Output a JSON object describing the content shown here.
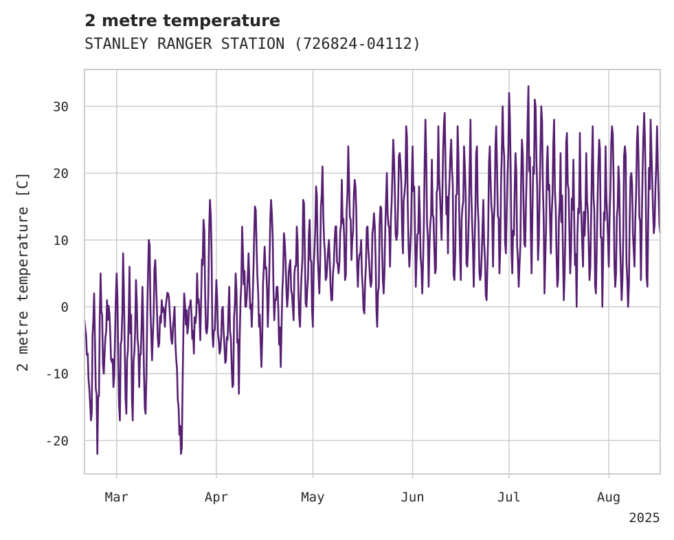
{
  "chart_data": {
    "type": "line",
    "title": "2 metre temperature",
    "subtitle": "STANLEY RANGER STATION (726824-04112)",
    "ylabel": "2 metre temperature [C]",
    "xlabel": "",
    "x_range": [
      "2025-02-19",
      "2025-08-17"
    ],
    "ylim": [
      -25,
      35.5
    ],
    "y_ticks": [
      -20,
      -10,
      0,
      10,
      20,
      30
    ],
    "x_ticks": [
      {
        "date": "2025-03-01",
        "label": "Mar"
      },
      {
        "date": "2025-04-01",
        "label": "Apr"
      },
      {
        "date": "2025-05-01",
        "label": "May"
      },
      {
        "date": "2025-06-01",
        "label": "Jun"
      },
      {
        "date": "2025-07-01",
        "label": "Jul"
      },
      {
        "date": "2025-08-01",
        "label": "Aug"
      }
    ],
    "x_offset_label": "2025",
    "grid": true,
    "colors": {
      "line": "#561f72",
      "grid": "#cccccc",
      "frame": "#cccccc",
      "text": "#262626"
    },
    "series": [
      {
        "points": [
          [
            "2025-02-19",
            -2
          ],
          [
            "2025-02-20",
            -7
          ],
          [
            "2025-02-21",
            -17
          ],
          [
            "2025-02-22",
            2
          ],
          [
            "2025-02-23",
            -22
          ],
          [
            "2025-02-24",
            5
          ],
          [
            "2025-02-25",
            -10
          ],
          [
            "2025-02-26",
            1
          ],
          [
            "2025-02-27",
            -4
          ],
          [
            "2025-02-28",
            -12
          ],
          [
            "2025-03-01",
            5
          ],
          [
            "2025-03-02",
            -17
          ],
          [
            "2025-03-03",
            8
          ],
          [
            "2025-03-04",
            -16
          ],
          [
            "2025-03-05",
            6
          ],
          [
            "2025-03-06",
            -17
          ],
          [
            "2025-03-07",
            4
          ],
          [
            "2025-03-08",
            -12
          ],
          [
            "2025-03-09",
            3
          ],
          [
            "2025-03-10",
            -16
          ],
          [
            "2025-03-11",
            10
          ],
          [
            "2025-03-12",
            -8
          ],
          [
            "2025-03-13",
            7
          ],
          [
            "2025-03-14",
            -6
          ],
          [
            "2025-03-15",
            1
          ],
          [
            "2025-03-16",
            -3
          ],
          [
            "2025-03-17",
            2
          ],
          [
            "2025-03-18",
            -5
          ],
          [
            "2025-03-19",
            0
          ],
          [
            "2025-03-20",
            -14
          ],
          [
            "2025-03-21",
            -22
          ],
          [
            "2025-03-22",
            2
          ],
          [
            "2025-03-23",
            -4
          ],
          [
            "2025-03-24",
            1
          ],
          [
            "2025-03-25",
            -7
          ],
          [
            "2025-03-26",
            5
          ],
          [
            "2025-03-27",
            -5
          ],
          [
            "2025-03-28",
            13
          ],
          [
            "2025-03-29",
            -4
          ],
          [
            "2025-03-30",
            16
          ],
          [
            "2025-03-31",
            -6
          ],
          [
            "2025-04-01",
            4
          ],
          [
            "2025-04-02",
            -7
          ],
          [
            "2025-04-03",
            0
          ],
          [
            "2025-04-04",
            -8
          ],
          [
            "2025-04-05",
            3
          ],
          [
            "2025-04-06",
            -12
          ],
          [
            "2025-04-07",
            5
          ],
          [
            "2025-04-08",
            -13
          ],
          [
            "2025-04-09",
            12
          ],
          [
            "2025-04-10",
            0
          ],
          [
            "2025-04-11",
            8
          ],
          [
            "2025-04-12",
            -3
          ],
          [
            "2025-04-13",
            15
          ],
          [
            "2025-04-14",
            2
          ],
          [
            "2025-04-15",
            -9
          ],
          [
            "2025-04-16",
            9
          ],
          [
            "2025-04-17",
            -3
          ],
          [
            "2025-04-18",
            16
          ],
          [
            "2025-04-19",
            -2
          ],
          [
            "2025-04-20",
            3
          ],
          [
            "2025-04-21",
            -9
          ],
          [
            "2025-04-22",
            11
          ],
          [
            "2025-04-23",
            0
          ],
          [
            "2025-04-24",
            7
          ],
          [
            "2025-04-25",
            -2
          ],
          [
            "2025-04-26",
            12
          ],
          [
            "2025-04-27",
            -3
          ],
          [
            "2025-04-28",
            16
          ],
          [
            "2025-04-29",
            0
          ],
          [
            "2025-04-30",
            13
          ],
          [
            "2025-05-01",
            -3
          ],
          [
            "2025-05-02",
            18
          ],
          [
            "2025-05-03",
            2
          ],
          [
            "2025-05-04",
            21
          ],
          [
            "2025-05-05",
            4
          ],
          [
            "2025-05-06",
            10
          ],
          [
            "2025-05-07",
            1
          ],
          [
            "2025-05-08",
            12
          ],
          [
            "2025-05-09",
            5
          ],
          [
            "2025-05-10",
            19
          ],
          [
            "2025-05-11",
            4
          ],
          [
            "2025-05-12",
            24
          ],
          [
            "2025-05-13",
            7
          ],
          [
            "2025-05-14",
            19
          ],
          [
            "2025-05-15",
            3
          ],
          [
            "2025-05-16",
            10
          ],
          [
            "2025-05-17",
            -1
          ],
          [
            "2025-05-18",
            12
          ],
          [
            "2025-05-19",
            3
          ],
          [
            "2025-05-20",
            14
          ],
          [
            "2025-05-21",
            -3
          ],
          [
            "2025-05-22",
            15
          ],
          [
            "2025-05-23",
            2
          ],
          [
            "2025-05-24",
            20
          ],
          [
            "2025-05-25",
            6
          ],
          [
            "2025-05-26",
            25
          ],
          [
            "2025-05-27",
            10
          ],
          [
            "2025-05-28",
            23
          ],
          [
            "2025-05-29",
            8
          ],
          [
            "2025-05-30",
            27
          ],
          [
            "2025-05-31",
            6
          ],
          [
            "2025-06-01",
            24
          ],
          [
            "2025-06-02",
            3
          ],
          [
            "2025-06-03",
            18
          ],
          [
            "2025-06-04",
            2
          ],
          [
            "2025-06-05",
            28
          ],
          [
            "2025-06-06",
            3
          ],
          [
            "2025-06-07",
            22
          ],
          [
            "2025-06-08",
            5
          ],
          [
            "2025-06-09",
            27
          ],
          [
            "2025-06-10",
            10
          ],
          [
            "2025-06-11",
            29
          ],
          [
            "2025-06-12",
            8
          ],
          [
            "2025-06-13",
            25
          ],
          [
            "2025-06-14",
            4
          ],
          [
            "2025-06-15",
            27
          ],
          [
            "2025-06-16",
            4
          ],
          [
            "2025-06-17",
            24
          ],
          [
            "2025-06-18",
            6
          ],
          [
            "2025-06-19",
            28
          ],
          [
            "2025-06-20",
            3
          ],
          [
            "2025-06-21",
            24
          ],
          [
            "2025-06-22",
            4
          ],
          [
            "2025-06-23",
            16
          ],
          [
            "2025-06-24",
            1
          ],
          [
            "2025-06-25",
            24
          ],
          [
            "2025-06-26",
            6
          ],
          [
            "2025-06-27",
            27
          ],
          [
            "2025-06-28",
            5
          ],
          [
            "2025-06-29",
            30
          ],
          [
            "2025-06-30",
            8
          ],
          [
            "2025-07-01",
            32
          ],
          [
            "2025-07-02",
            5
          ],
          [
            "2025-07-03",
            23
          ],
          [
            "2025-07-04",
            3
          ],
          [
            "2025-07-05",
            25
          ],
          [
            "2025-07-06",
            9
          ],
          [
            "2025-07-07",
            33
          ],
          [
            "2025-07-08",
            5
          ],
          [
            "2025-07-09",
            31
          ],
          [
            "2025-07-10",
            7
          ],
          [
            "2025-07-11",
            30
          ],
          [
            "2025-07-12",
            2
          ],
          [
            "2025-07-13",
            24
          ],
          [
            "2025-07-14",
            8
          ],
          [
            "2025-07-15",
            28
          ],
          [
            "2025-07-16",
            3
          ],
          [
            "2025-07-17",
            23
          ],
          [
            "2025-07-18",
            1
          ],
          [
            "2025-07-19",
            26
          ],
          [
            "2025-07-20",
            5
          ],
          [
            "2025-07-21",
            22
          ],
          [
            "2025-07-22",
            0
          ],
          [
            "2025-07-23",
            26
          ],
          [
            "2025-07-24",
            6
          ],
          [
            "2025-07-25",
            23
          ],
          [
            "2025-07-26",
            4
          ],
          [
            "2025-07-27",
            27
          ],
          [
            "2025-07-28",
            2
          ],
          [
            "2025-07-29",
            25
          ],
          [
            "2025-07-30",
            0
          ],
          [
            "2025-07-31",
            24
          ],
          [
            "2025-08-01",
            6
          ],
          [
            "2025-08-02",
            27
          ],
          [
            "2025-08-03",
            3
          ],
          [
            "2025-08-04",
            21
          ],
          [
            "2025-08-05",
            1
          ],
          [
            "2025-08-06",
            24
          ],
          [
            "2025-08-07",
            0
          ],
          [
            "2025-08-08",
            20
          ],
          [
            "2025-08-09",
            6
          ],
          [
            "2025-08-10",
            27
          ],
          [
            "2025-08-11",
            4
          ],
          [
            "2025-08-12",
            29
          ],
          [
            "2025-08-13",
            3
          ],
          [
            "2025-08-14",
            28
          ],
          [
            "2025-08-15",
            11
          ],
          [
            "2025-08-16",
            27
          ],
          [
            "2025-08-17",
            11
          ]
        ]
      }
    ]
  }
}
